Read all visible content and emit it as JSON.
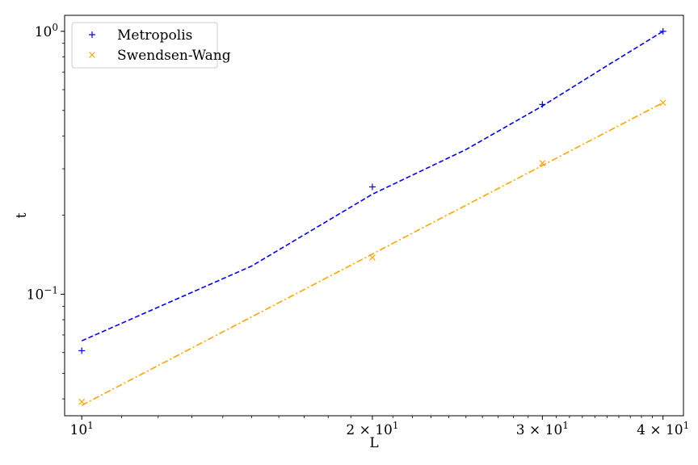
{
  "chart_data": {
    "type": "scatter",
    "xscale": "log",
    "yscale": "log",
    "xlabel": "L",
    "ylabel": "t",
    "xlim": [
      9.6,
      42
    ],
    "ylim": [
      0.0345,
      1.15
    ],
    "legend_position": "top-left",
    "grid": false,
    "x_ticks": [
      {
        "value": 10,
        "base": "10",
        "exp": "1"
      },
      {
        "value": 20,
        "base": "2 × 10",
        "exp": "1"
      },
      {
        "value": 30,
        "base": "3 × 10",
        "exp": "1"
      },
      {
        "value": 40,
        "base": "4 × 10",
        "exp": "1"
      }
    ],
    "y_ticks": [
      {
        "value": 1,
        "base": "10",
        "exp": "0"
      },
      {
        "value": 0.1,
        "base": "10",
        "exp": "−1"
      }
    ],
    "series": [
      {
        "name": "Metropolis",
        "color": "#0000ff",
        "marker": "plus",
        "points": [
          {
            "x": 10,
            "y": 0.061
          },
          {
            "x": 20,
            "y": 0.256
          },
          {
            "x": 30,
            "y": 0.527
          },
          {
            "x": 40,
            "y": 1.0
          }
        ],
        "fit": {
          "style": "dashed",
          "points": [
            {
              "x": 10,
              "y": 0.0665
            },
            {
              "x": 15,
              "y": 0.128
            },
            {
              "x": 20,
              "y": 0.24
            },
            {
              "x": 25,
              "y": 0.355
            },
            {
              "x": 30,
              "y": 0.52
            },
            {
              "x": 35,
              "y": 0.74
            },
            {
              "x": 40,
              "y": 1.0
            }
          ]
        }
      },
      {
        "name": "Swendsen-Wang",
        "color": "#ffa500",
        "marker": "x",
        "points": [
          {
            "x": 10,
            "y": 0.039
          },
          {
            "x": 20,
            "y": 0.138
          },
          {
            "x": 30,
            "y": 0.315
          },
          {
            "x": 40,
            "y": 0.535
          }
        ],
        "fit": {
          "style": "dashdot",
          "points": [
            {
              "x": 10,
              "y": 0.0378
            },
            {
              "x": 40,
              "y": 0.535
            }
          ]
        }
      }
    ]
  }
}
